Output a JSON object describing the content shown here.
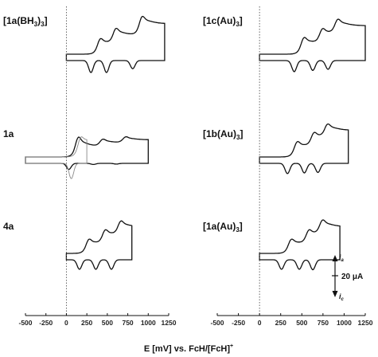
{
  "figure": {
    "x_axis_title": {
      "main": "E [mV] vs. FcH/[FcH]",
      "sup": "+"
    },
    "x_ticks": [
      "-500",
      "-250",
      "0",
      "250",
      "500",
      "750",
      "1000",
      "1250"
    ],
    "scale_bar": {
      "anodic": "i",
      "anodic_sub": "a",
      "cathodic": "i",
      "cathodic_sub": "c",
      "value": "20 μA"
    }
  },
  "chart_data": [
    {
      "type": "line",
      "panel": "left-top",
      "label_parts": [
        "[1a(BH",
        "3",
        ")",
        "3",
        "]"
      ],
      "xlim": [
        -500,
        1250
      ],
      "series": [
        {
          "color": "#111111",
          "waves": [
            {
              "E": 390,
              "h": 0.42,
              "r": 0.52
            },
            {
              "E": 580,
              "h": 0.42,
              "r": 0.52
            },
            {
              "E": 900,
              "h": 0.5,
              "r": 0.3
            }
          ],
          "decay": 0.45,
          "peak_end": 1040,
          "x_start": 0,
          "x_end": 1200
        }
      ]
    },
    {
      "type": "line",
      "panel": "left-middle",
      "label_parts": [
        "1a"
      ],
      "xlim": [
        -500,
        1250
      ],
      "series": [
        {
          "color": "#111111",
          "waves": [
            {
              "E": 120,
              "h": 0.6,
              "r": 0.2
            },
            {
              "E": 420,
              "h": 0.22,
              "r": 0.1
            },
            {
              "E": 700,
              "h": 0.18,
              "r": 0.08
            }
          ],
          "decay": 0.55,
          "peak_end": 1100,
          "x_start": -500,
          "x_end": 1000
        },
        {
          "color": "#888888",
          "waves": [
            {
              "E": 150,
              "h": 0.55,
              "r": 0.55
            }
          ],
          "decay": 0.25,
          "peak_end": 1100,
          "x_start": -500,
          "x_end": 250
        }
      ]
    },
    {
      "type": "line",
      "panel": "left-bottom",
      "label_parts": [
        "4a"
      ],
      "xlim": [
        -500,
        1250
      ],
      "series": [
        {
          "color": "#111111",
          "waves": [
            {
              "E": 250,
              "h": 0.4,
              "r": 0.45
            },
            {
              "E": 450,
              "h": 0.4,
              "r": 0.45
            },
            {
              "E": 640,
              "h": 0.4,
              "r": 0.45
            }
          ],
          "decay": 0.45,
          "peak_end": 900,
          "x_start": 0,
          "x_end": 800
        }
      ]
    },
    {
      "type": "line",
      "panel": "right-top",
      "label_parts": [
        "[1c(Au)",
        "3",
        "]"
      ],
      "xlim": [
        -500,
        1250
      ],
      "series": [
        {
          "color": "#111111",
          "waves": [
            {
              "E": 500,
              "h": 0.45,
              "r": 0.45
            },
            {
              "E": 720,
              "h": 0.4,
              "r": 0.45
            },
            {
              "E": 900,
              "h": 0.4,
              "r": 0.4
            }
          ],
          "decay": 0.45,
          "peak_end": 1100,
          "x_start": 0,
          "x_end": 1250
        }
      ]
    },
    {
      "type": "line",
      "panel": "right-middle",
      "label_parts": [
        "[1b(Au)",
        "3",
        "]"
      ],
      "xlim": [
        -500,
        1250
      ],
      "series": [
        {
          "color": "#111111",
          "waves": [
            {
              "E": 420,
              "h": 0.45,
              "r": 0.45
            },
            {
              "E": 620,
              "h": 0.42,
              "r": 0.45
            },
            {
              "E": 780,
              "h": 0.4,
              "r": 0.45
            }
          ],
          "decay": 0.45,
          "peak_end": 1000,
          "x_start": 0,
          "x_end": 1050
        }
      ]
    },
    {
      "type": "line",
      "panel": "right-bottom",
      "label_parts": [
        "[1a(Au)",
        "3",
        "]"
      ],
      "xlim": [
        -500,
        1250
      ],
      "series": [
        {
          "color": "#111111",
          "waves": [
            {
              "E": 350,
              "h": 0.4,
              "r": 0.45
            },
            {
              "E": 560,
              "h": 0.4,
              "r": 0.45
            },
            {
              "E": 720,
              "h": 0.42,
              "r": 0.45
            }
          ],
          "decay": 0.45,
          "peak_end": 950,
          "x_start": 0,
          "x_end": 950
        }
      ]
    }
  ]
}
